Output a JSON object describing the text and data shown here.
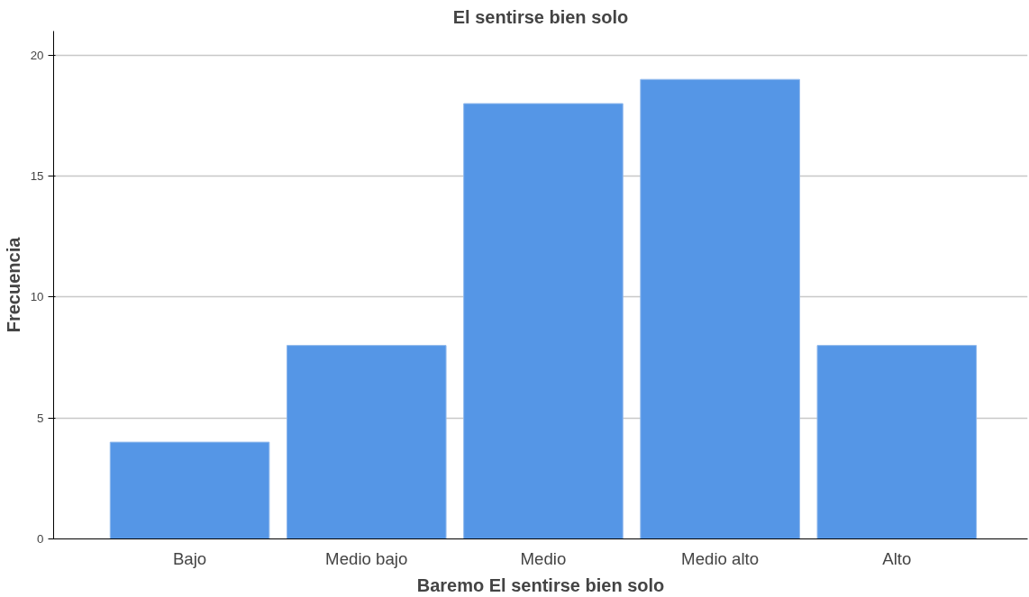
{
  "chart_data": {
    "type": "bar",
    "title": "El sentirse bien solo",
    "xlabel": "Baremo El sentirse bien solo",
    "ylabel": "Frecuencia",
    "categories": [
      "Bajo",
      "Medio bajo",
      "Medio",
      "Medio alto",
      "Alto"
    ],
    "values": [
      4,
      8,
      18,
      19,
      8
    ],
    "color": "#5596e6",
    "ylim": [
      0,
      21
    ],
    "yticks": [
      0,
      5,
      10,
      15,
      20
    ],
    "grid": "y"
  }
}
